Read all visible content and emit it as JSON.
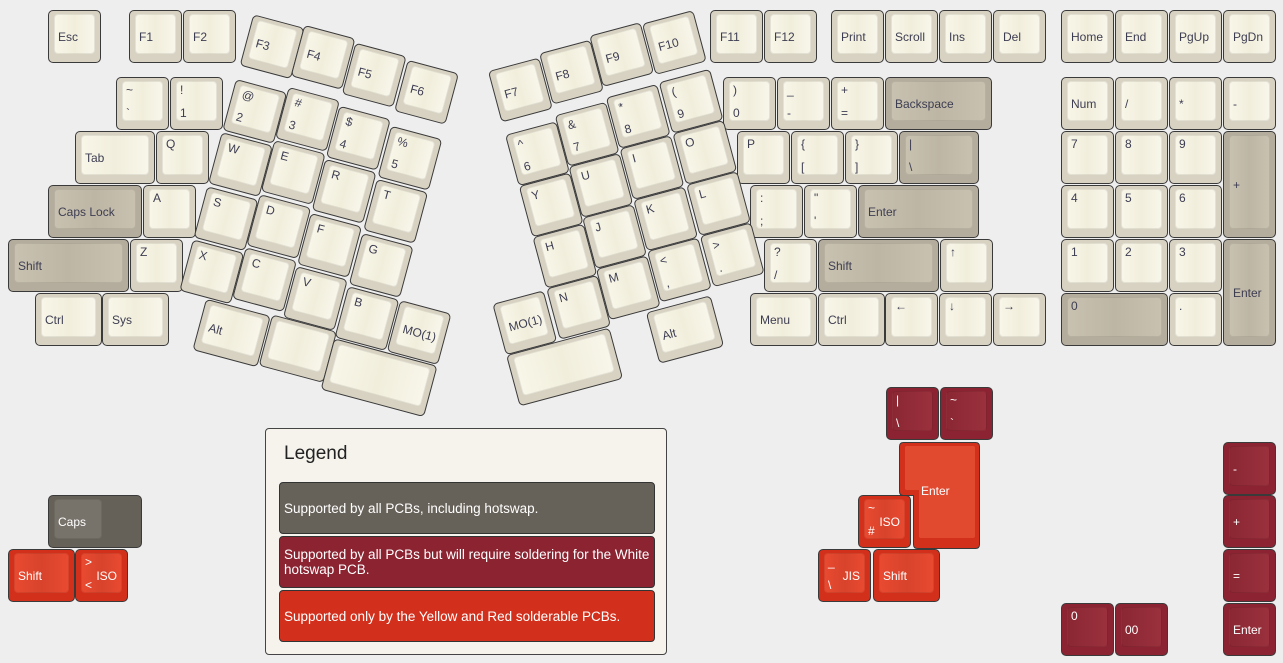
{
  "palette": {
    "cream": "#f6f3e4",
    "modifier_gray": "#bfb8a8",
    "hotswap_gray": "#676259",
    "solder_white_red": "#8b2331",
    "solderable_only_orange": "#d2301c",
    "background": "#eeeeee"
  },
  "legend": {
    "title": "Legend",
    "items": [
      {
        "text": "Supported by all PCBs, including hotswap.",
        "color": "#676259"
      },
      {
        "text": "Supported by all PCBs but will require soldering for the White hotswap PCB.",
        "color": "#8b2331"
      },
      {
        "text": "Supported only by the Yellow and Red solderable PCBs.",
        "color": "#d2301c"
      }
    ]
  },
  "keys": {
    "esc": {
      "label": "Esc"
    },
    "f1": {
      "label": "F1"
    },
    "f2": {
      "label": "F2"
    },
    "grave": {
      "top": "~",
      "bottom": "`"
    },
    "n1": {
      "top": "!",
      "bottom": "1"
    },
    "tab": {
      "label": "Tab"
    },
    "q": {
      "label": "Q"
    },
    "caps": {
      "label": "Caps Lock"
    },
    "a": {
      "label": "A"
    },
    "lshift": {
      "label": "Shift"
    },
    "z": {
      "label": "Z"
    },
    "lctrl": {
      "label": "Ctrl"
    },
    "sys": {
      "label": "Sys"
    },
    "f3": {
      "label": "F3"
    },
    "f4": {
      "label": "F4"
    },
    "f5": {
      "label": "F5"
    },
    "f6": {
      "label": "F6"
    },
    "n2": {
      "top": "@",
      "bottom": "2"
    },
    "n3": {
      "top": "#",
      "bottom": "3"
    },
    "n4": {
      "top": "$",
      "bottom": "4"
    },
    "n5": {
      "top": "%",
      "bottom": "5"
    },
    "w": {
      "label": "W"
    },
    "e": {
      "label": "E"
    },
    "r": {
      "label": "R"
    },
    "t": {
      "label": "T"
    },
    "s": {
      "label": "S"
    },
    "d": {
      "label": "D"
    },
    "f": {
      "label": "F"
    },
    "g": {
      "label": "G"
    },
    "x": {
      "label": "X"
    },
    "c": {
      "label": "C"
    },
    "v": {
      "label": "V"
    },
    "b": {
      "label": "B"
    },
    "mo1_left": {
      "label": "MO(1)"
    },
    "lalt": {
      "label": "Alt"
    },
    "lthumb": {
      "label": ""
    },
    "lspace": {
      "label": ""
    },
    "f7": {
      "label": "F7"
    },
    "f8": {
      "label": "F8"
    },
    "f9": {
      "label": "F9"
    },
    "f10": {
      "label": "F10"
    },
    "n6": {
      "top": "^",
      "bottom": "6"
    },
    "n7": {
      "top": "&",
      "bottom": "7"
    },
    "n8": {
      "top": "*",
      "bottom": "8"
    },
    "n9": {
      "top": "(",
      "bottom": "9"
    },
    "y": {
      "label": "Y"
    },
    "u": {
      "label": "U"
    },
    "i": {
      "label": "I"
    },
    "o": {
      "label": "O"
    },
    "h": {
      "label": "H"
    },
    "j": {
      "label": "J"
    },
    "k": {
      "label": "K"
    },
    "l": {
      "label": "L"
    },
    "n": {
      "label": "N"
    },
    "m": {
      "label": "M"
    },
    "comma": {
      "top": "<",
      "bottom": ","
    },
    "period": {
      "top": ">",
      "bottom": "."
    },
    "mo1_right": {
      "label": "MO(1)"
    },
    "rspace": {
      "label": ""
    },
    "ralt": {
      "label": "Alt"
    },
    "f11": {
      "label": "F11"
    },
    "f12": {
      "label": "F12"
    },
    "print": {
      "label": "Print"
    },
    "scroll": {
      "label": "Scroll"
    },
    "ins": {
      "label": "Ins"
    },
    "del": {
      "label": "Del"
    },
    "home": {
      "label": "Home"
    },
    "end": {
      "label": "End"
    },
    "pgup": {
      "label": "PgUp"
    },
    "pgdn": {
      "label": "PgDn"
    },
    "n0": {
      "top": ")",
      "bottom": "0"
    },
    "minus": {
      "top": "_",
      "bottom": "-"
    },
    "equal": {
      "top": "+",
      "bottom": "="
    },
    "backspace": {
      "label": "Backspace"
    },
    "p": {
      "label": "P"
    },
    "lbracket": {
      "top": "{",
      "bottom": "["
    },
    "rbracket": {
      "top": "}",
      "bottom": "]"
    },
    "backslash": {
      "top": "|",
      "bottom": "\\"
    },
    "semicolon": {
      "top": ":",
      "bottom": ";"
    },
    "quote": {
      "top": "\"",
      "bottom": "'"
    },
    "enter": {
      "label": "Enter"
    },
    "slash": {
      "top": "?",
      "bottom": "/"
    },
    "rshift": {
      "label": "Shift"
    },
    "up": {
      "label": "↑"
    },
    "menu": {
      "label": "Menu"
    },
    "rctrl": {
      "label": "Ctrl"
    },
    "left": {
      "label": "←"
    },
    "down": {
      "label": "↓"
    },
    "right": {
      "label": "→"
    },
    "numlock": {
      "label": "Num"
    },
    "kp_div": {
      "label": "/"
    },
    "kp_mul": {
      "label": "*"
    },
    "kp_minus": {
      "label": "-"
    },
    "kp7": {
      "label": "7"
    },
    "kp8": {
      "label": "8"
    },
    "kp9": {
      "label": "9"
    },
    "kp_plus": {
      "label": "+"
    },
    "kp4": {
      "label": "4"
    },
    "kp5": {
      "label": "5"
    },
    "kp6": {
      "label": "6"
    },
    "kp1": {
      "label": "1"
    },
    "kp2": {
      "label": "2"
    },
    "kp3": {
      "label": "3"
    },
    "kp_enter": {
      "label": "Enter"
    },
    "kp0": {
      "label": "0"
    },
    "kp_dot": {
      "label": "."
    },
    "alt_caps": {
      "label": "Caps"
    },
    "alt_lshift": {
      "label": "Shift"
    },
    "iso_left": {
      "top": ">",
      "bottom": "<",
      "side": "ISO"
    },
    "alt_pipe": {
      "top": "|",
      "bottom": "\\"
    },
    "alt_tilde": {
      "top": "~",
      "bottom": "`"
    },
    "iso_enter": {
      "label": "Enter"
    },
    "iso_hash": {
      "top": "~",
      "bottom": "#",
      "side": "ISO"
    },
    "jis": {
      "top": "_",
      "bottom": "\\",
      "side": "JIS"
    },
    "alt_rshift": {
      "label": "Shift"
    },
    "alt_kp_minus": {
      "label": "-"
    },
    "alt_kp_plus": {
      "label": "+"
    },
    "alt_kp_equal": {
      "label": "="
    },
    "alt_kp_enter": {
      "label": "Enter"
    },
    "alt_kp0": {
      "label": "0"
    },
    "alt_kp00": {
      "label": "00"
    }
  }
}
